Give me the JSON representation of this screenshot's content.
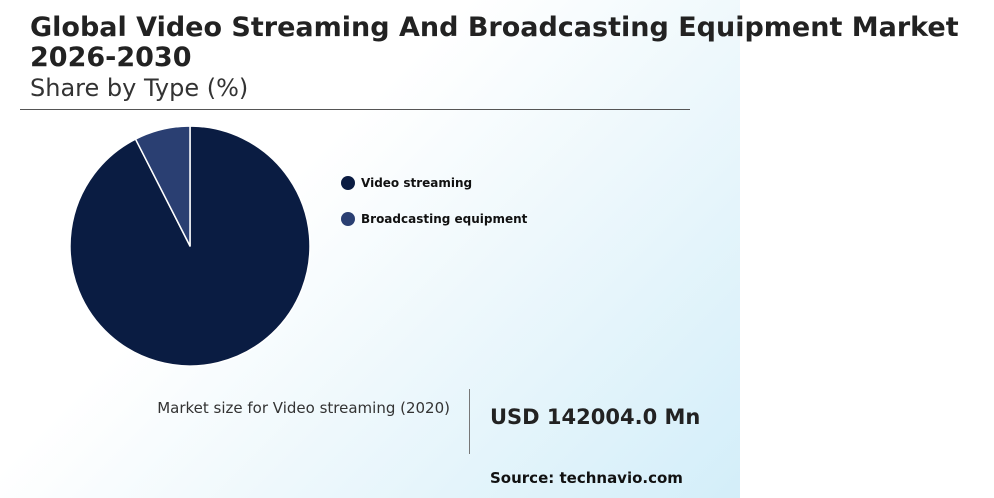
{
  "chart_data": {
    "type": "pie",
    "title": "Global Video Streaming And Broadcasting Equipment Market 2026-2030",
    "subtitle": "Share by Type (%)",
    "categories": [
      "Video streaming",
      "Broadcasting equipment"
    ],
    "values": [
      92.5,
      7.5
    ],
    "colors": [
      "#0a1c42",
      "#2a3f72"
    ],
    "start_angle": "12 o'clock",
    "direction": "clockwise",
    "legend_position": "right"
  },
  "summary": {
    "label": "Market size for Video streaming (2020)",
    "value": "USD 142004.0 Mn"
  },
  "source": "Source: technavio.com"
}
